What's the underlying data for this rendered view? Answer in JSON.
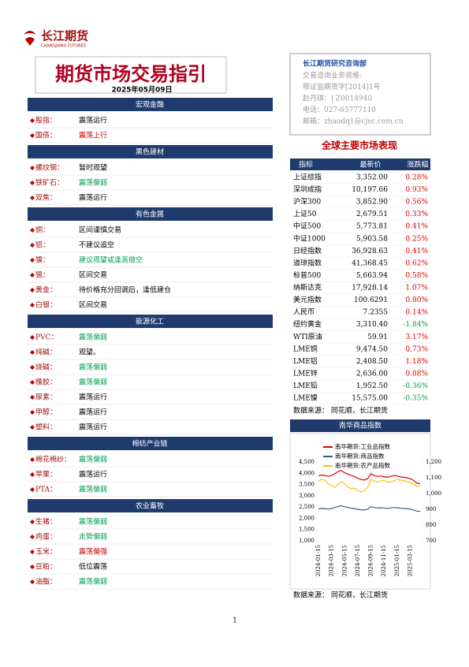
{
  "header": {
    "brand": "长江期货",
    "brand_en": "CHANGJIANG FUTURES",
    "title": "期货市场交易指引",
    "date": "2025年05月09日"
  },
  "sections": [
    {
      "title": "宏观金融",
      "items": [
        {
          "label": "股指：",
          "view": "震荡运行",
          "color": "#000000"
        },
        {
          "label": "国债：",
          "view": "震荡上行",
          "color": "#c00000"
        }
      ]
    },
    {
      "title": "黑色建材",
      "items": [
        {
          "label": "螺纹钢：",
          "view": "暂时观望",
          "color": "#000000"
        },
        {
          "label": "铁矿石：",
          "view": "震荡偏弱",
          "color": "#00a050"
        },
        {
          "label": "双焦：",
          "view": "震荡运行",
          "color": "#000000"
        }
      ]
    },
    {
      "title": "有色金属",
      "items": [
        {
          "label": "铜：",
          "view": "区间谨慎交易",
          "color": "#000000"
        },
        {
          "label": "铝：",
          "view": "不建议追空",
          "color": "#000000"
        },
        {
          "label": "镍：",
          "view": "建议观望或逢高做空",
          "color": "#00a050"
        },
        {
          "label": "锡：",
          "view": "区间交易",
          "color": "#000000"
        },
        {
          "label": "黄金：",
          "view": "待价格充分回调后，逢低建仓",
          "color": "#000000"
        },
        {
          "label": "白银：",
          "view": "区间交易",
          "color": "#000000"
        }
      ]
    },
    {
      "title": "能源化工",
      "items": [
        {
          "label": "PVC：",
          "view": "震荡偏弱",
          "color": "#00a050"
        },
        {
          "label": "纯碱：",
          "view": "观望。",
          "color": "#000000"
        },
        {
          "label": "烧碱：",
          "view": "震荡偏弱",
          "color": "#00a050"
        },
        {
          "label": "橡胶：",
          "view": "震荡偏弱",
          "color": "#00a050"
        },
        {
          "label": "尿素：",
          "view": "震荡运行",
          "color": "#000000"
        },
        {
          "label": "甲醇：",
          "view": "震荡运行",
          "color": "#000000"
        },
        {
          "label": "塑料：",
          "view": "震荡运行",
          "color": "#000000"
        }
      ]
    },
    {
      "title": "棉纺产业链",
      "items": [
        {
          "label": "棉花棉纱：",
          "view": "震荡偏弱",
          "color": "#00a050"
        },
        {
          "label": "苹果：",
          "view": "震荡运行",
          "color": "#000000"
        },
        {
          "label": "PTA：",
          "view": "震荡偏弱",
          "color": "#00a050"
        }
      ]
    },
    {
      "title": "农业畜牧",
      "items": [
        {
          "label": "生猪：",
          "view": "震荡偏弱",
          "color": "#00a050"
        },
        {
          "label": "鸡蛋：",
          "view": "走势偏弱",
          "color": "#00a050"
        },
        {
          "label": "玉米：",
          "view": "震荡偏强",
          "color": "#c00000"
        },
        {
          "label": "豆粕：",
          "view": "低位震荡",
          "color": "#000000"
        },
        {
          "label": "油脂：",
          "view": "震荡偏弱",
          "color": "#00a050"
        }
      ]
    }
  ],
  "info": {
    "dept": "长江期货研究咨询部",
    "lines": [
      "交易咨询业务资格:",
      "鄂证监期货字[2014]1号",
      "赵丹琪：| Z0014940",
      "电话：027-65777110",
      "邮箱：zhaodq1@cjsc.com.cn"
    ]
  },
  "market": {
    "title": "全球主要市场表现",
    "columns": [
      "指标",
      "最新价",
      "涨跌幅"
    ],
    "rows": [
      [
        "上证综指",
        "3,352.00",
        "0.28%"
      ],
      [
        "深圳成指",
        "10,197.66",
        "0.93%"
      ],
      [
        "沪深300",
        "3,852.90",
        "0.56%"
      ],
      [
        "上证50",
        "2,679.51",
        "0.33%"
      ],
      [
        "中证500",
        "5,773.81",
        "0.41%"
      ],
      [
        "中证1000",
        "5,903.58",
        "0.25%"
      ],
      [
        "日经指数",
        "36,928.63",
        "0.41%"
      ],
      [
        "道琼指数",
        "41,368.45",
        "0.62%"
      ],
      [
        "标普500",
        "5,663.94",
        "0.58%"
      ],
      [
        "纳斯达克",
        "17,928.14",
        "1.07%"
      ],
      [
        "美元指数",
        "100.6291",
        "0.80%"
      ],
      [
        "人民币",
        "7.2355",
        "0.14%"
      ],
      [
        "纽约黄金",
        "3,310.40",
        "-1.84%"
      ],
      [
        "WTI原油",
        "59.91",
        "3.17%"
      ],
      [
        "LME铜",
        "9,474.50",
        "0.73%"
      ],
      [
        "LME铝",
        "2,408.50",
        "1.18%"
      ],
      [
        "LME锌",
        "2,636.00",
        "0.88%"
      ],
      [
        "LME铅",
        "1,952.50",
        "-0.36%"
      ],
      [
        "LME镍",
        "15,575.00",
        "-0.35%"
      ]
    ],
    "source": "数据来源：  同花顺，长江期货"
  },
  "chart_data": {
    "type": "line",
    "title": "南华商品指数",
    "x": [
      "2024-01-15",
      null,
      null,
      null,
      "2024-03-15",
      null,
      null,
      null,
      "2024-05-15",
      null,
      null,
      null,
      "2024-07-15",
      null,
      null,
      null,
      "2024-09-15",
      null,
      null,
      null,
      "2024-11-15",
      null,
      null,
      null,
      "2025-01-15",
      null,
      null,
      null,
      "2025-03-15",
      null,
      null,
      null
    ],
    "series": [
      {
        "name": "南华期货:工业品指数",
        "color": "#e00000",
        "axis": "y",
        "values": [
          3880,
          3920,
          3900,
          3860,
          3900,
          3980,
          4080,
          4120,
          4020,
          3960,
          3900,
          3850,
          3780,
          3720,
          3700,
          3760,
          3980,
          3900,
          3860,
          3880,
          3850,
          3820,
          3860,
          3900,
          3880,
          3840,
          3820,
          3800,
          3760,
          3680,
          3560,
          3540
        ]
      },
      {
        "name": "南华期货:商品指数",
        "color": "#2f5f8f",
        "axis": "y",
        "values": [
          2420,
          2440,
          2430,
          2410,
          2440,
          2480,
          2530,
          2560,
          2510,
          2480,
          2450,
          2430,
          2400,
          2380,
          2370,
          2400,
          2520,
          2480,
          2460,
          2470,
          2460,
          2440,
          2460,
          2480,
          2470,
          2450,
          2440,
          2430,
          2410,
          2370,
          2320,
          2310
        ]
      },
      {
        "name": "南华期货:农产品指数",
        "color": "#ffc000",
        "axis": "y2",
        "values": [
          1080,
          1090,
          1085,
          1060,
          1050,
          1040,
          1060,
          1075,
          1060,
          1040,
          1030,
          1035,
          1020,
          1010,
          1020,
          1040,
          1090,
          1080,
          1075,
          1080,
          1085,
          1070,
          1075,
          1080,
          1090,
          1085,
          1080,
          1075,
          1070,
          1060,
          1045,
          1050
        ]
      }
    ],
    "ylim": [
      1000,
      4500
    ],
    "yticks": [
      {
        "value": 1000,
        "label": "1,000"
      },
      {
        "value": 1500,
        "label": "1,500"
      },
      {
        "value": 2000,
        "label": "2,000"
      },
      {
        "value": 2500,
        "label": "2,500"
      },
      {
        "value": 3000,
        "label": "3,000"
      },
      {
        "value": 3500,
        "label": "3,500"
      },
      {
        "value": 4000,
        "label": "4,000"
      },
      {
        "value": 4500,
        "label": "4,500"
      }
    ],
    "y2lim": [
      700,
      1200
    ],
    "y2ticks": [
      700,
      800,
      900,
      {
        "value": 1000,
        "label": "1,000"
      },
      {
        "value": 1100,
        "label": "1,100"
      },
      {
        "value": 1200,
        "label": "1,200"
      }
    ],
    "source": "数据来源：  同花顺，长江期货"
  },
  "footer": {
    "page": "1"
  }
}
